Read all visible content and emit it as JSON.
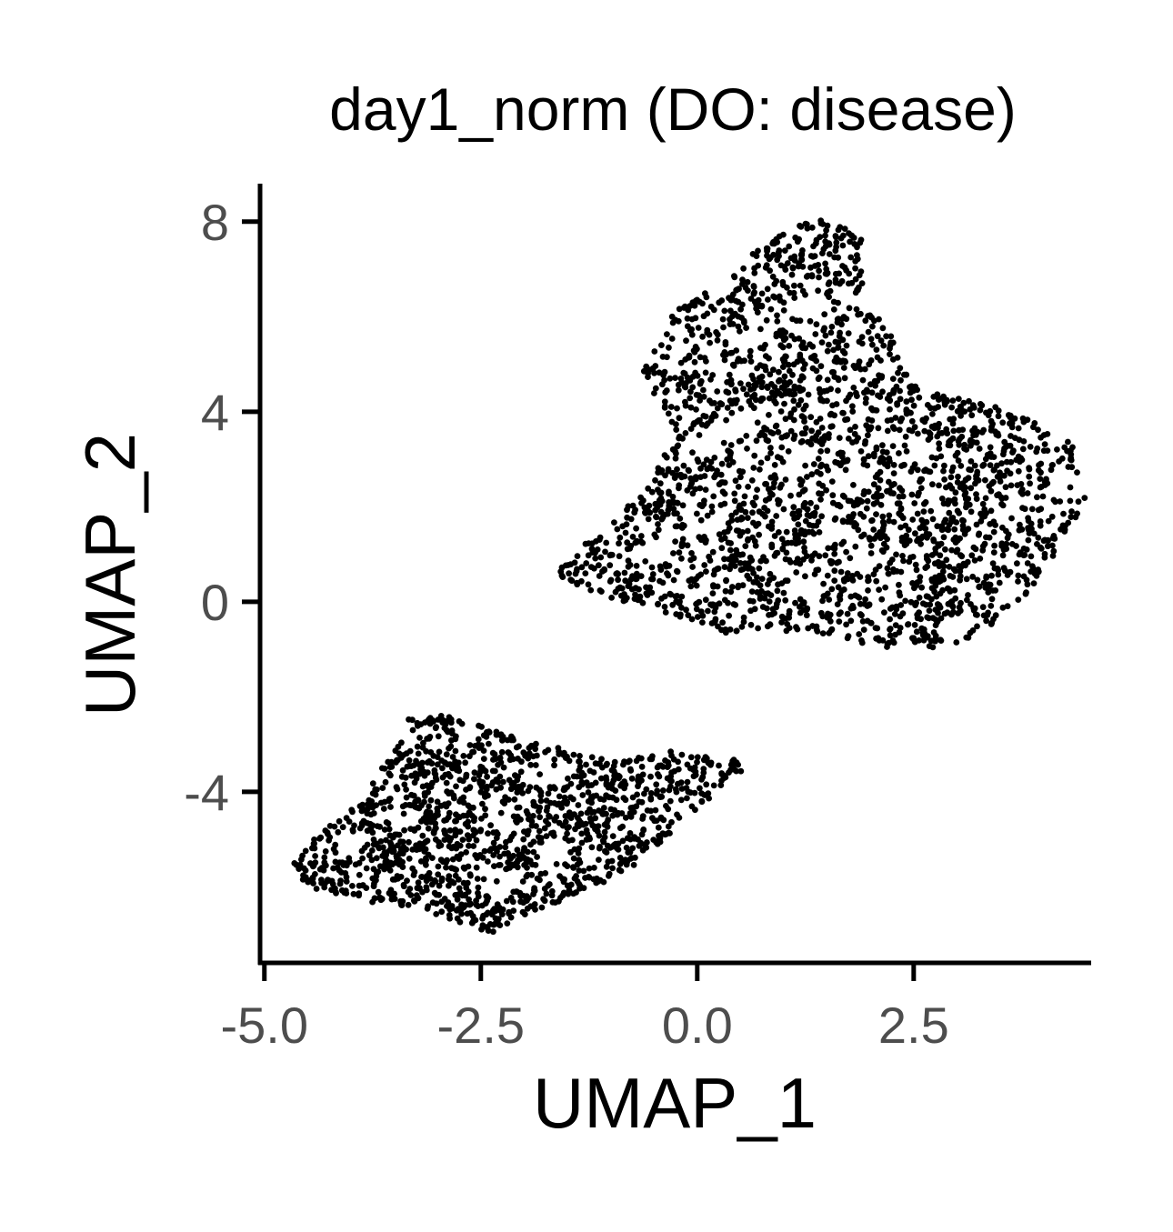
{
  "chart_data": {
    "type": "scatter",
    "title": "day1_norm (DO: disease)",
    "xlabel": "UMAP_1",
    "ylabel": "UMAP_2",
    "xlim": [
      -5.05,
      4.55
    ],
    "ylim": [
      -7.6,
      8.8
    ],
    "xticks": [
      -5.0,
      -2.5,
      0.0,
      2.5
    ],
    "xtick_labels": [
      "-5.0",
      "-2.5",
      "0.0",
      "2.5"
    ],
    "yticks": [
      8,
      4,
      0,
      -4
    ],
    "ytick_labels": [
      "8",
      "4",
      "0",
      "-4"
    ],
    "grid": false,
    "legend": "none",
    "point_color": "#000000",
    "clusters": [
      {
        "label": "lower-left cluster",
        "outline": [
          [
            -3.3,
            -2.4
          ],
          [
            -2.8,
            -2.5
          ],
          [
            -2.3,
            -2.8
          ],
          [
            -1.7,
            -3.1
          ],
          [
            -1.0,
            -3.4
          ],
          [
            -0.3,
            -3.2
          ],
          [
            0.55,
            -3.4
          ],
          [
            0.2,
            -3.9
          ],
          [
            -0.2,
            -4.7
          ],
          [
            -0.8,
            -5.6
          ],
          [
            -1.6,
            -6.3
          ],
          [
            -2.4,
            -6.9
          ],
          [
            -3.3,
            -6.4
          ],
          [
            -4.0,
            -6.2
          ],
          [
            -4.5,
            -5.9
          ],
          [
            -4.65,
            -5.5
          ],
          [
            -4.3,
            -4.8
          ],
          [
            -3.8,
            -4.2
          ]
        ],
        "approx_points": 1300
      },
      {
        "label": "upper-right cluster",
        "outline": [
          [
            -1.6,
            0.6
          ],
          [
            -1.3,
            1.1
          ],
          [
            -0.6,
            2.3
          ],
          [
            -0.2,
            3.5
          ],
          [
            -0.6,
            4.8
          ],
          [
            -0.2,
            6.2
          ],
          [
            0.3,
            6.6
          ],
          [
            0.85,
            7.6
          ],
          [
            1.4,
            8.0
          ],
          [
            1.85,
            7.7
          ],
          [
            1.9,
            6.3
          ],
          [
            2.2,
            5.6
          ],
          [
            2.5,
            4.5
          ],
          [
            3.1,
            4.2
          ],
          [
            3.7,
            3.9
          ],
          [
            4.3,
            3.3
          ],
          [
            4.45,
            2.1
          ],
          [
            4.1,
            1.1
          ],
          [
            3.8,
            0.2
          ],
          [
            3.2,
            -0.7
          ],
          [
            2.5,
            -1.0
          ],
          [
            1.6,
            -0.7
          ],
          [
            0.8,
            -0.5
          ],
          [
            0.3,
            -0.6
          ],
          [
            -0.5,
            -0.1
          ],
          [
            -1.1,
            0.2
          ]
        ],
        "approx_points": 2300
      }
    ]
  }
}
